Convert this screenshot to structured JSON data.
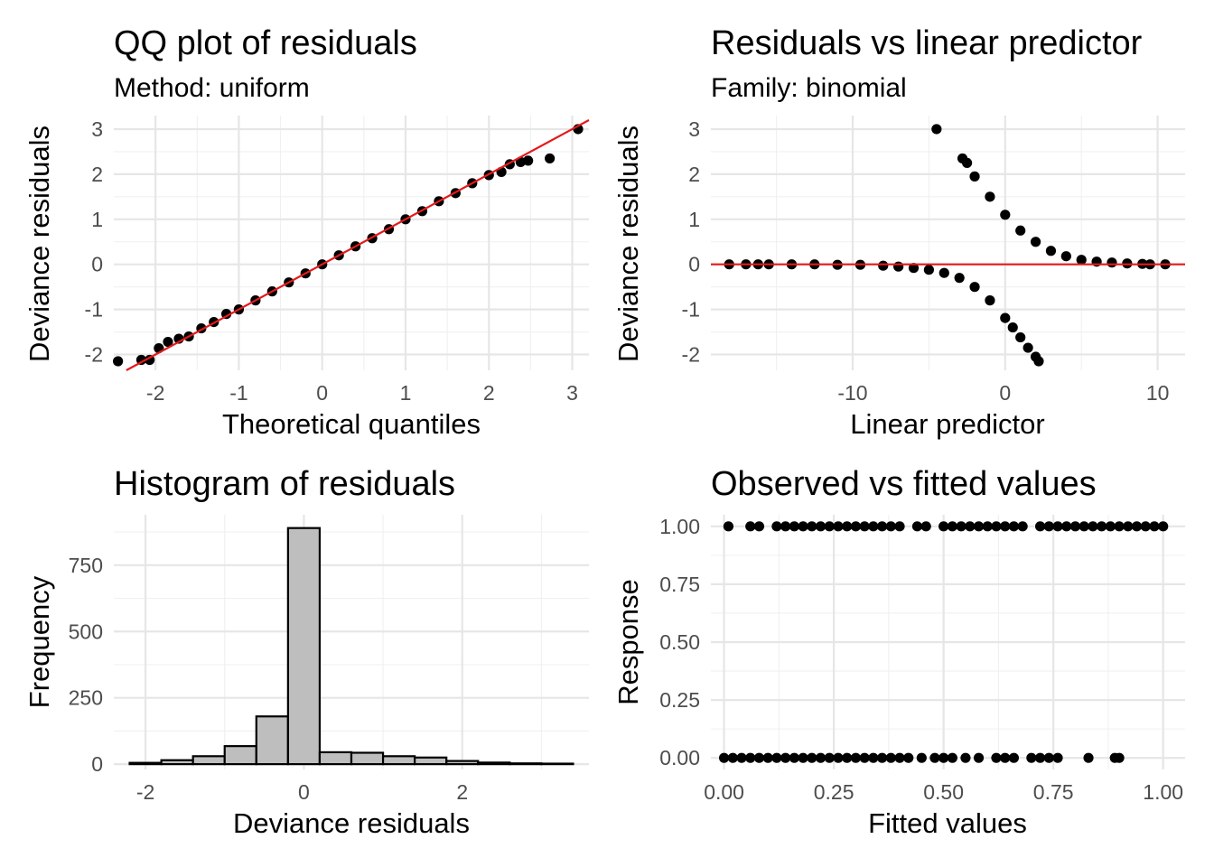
{
  "chart_data": [
    {
      "type": "scatter",
      "title": "QQ plot of residuals",
      "subtitle": "Method: uniform",
      "xlabel": "Theoretical quantiles",
      "ylabel": "Deviance residuals",
      "xlim": [
        -2.5,
        3.2
      ],
      "ylim": [
        -2.35,
        3.3
      ],
      "xticks": [
        -2,
        -1,
        0,
        1,
        2,
        3
      ],
      "yticks": [
        -2,
        -1,
        0,
        1,
        2,
        3
      ],
      "reference_line": {
        "slope": 1,
        "intercept": 0,
        "color": "#e41a1c"
      },
      "grid": true,
      "series": [
        {
          "x": [
            -2.45,
            -2.17,
            -2.07,
            -1.96,
            -1.85,
            -1.72,
            -1.6,
            -1.45,
            -1.3,
            -1.15,
            -1.0,
            -0.8,
            -0.6,
            -0.4,
            -0.2,
            0.0,
            0.2,
            0.4,
            0.6,
            0.8,
            1.0,
            1.2,
            1.4,
            1.6,
            1.8,
            2.0,
            2.15,
            2.25,
            2.38,
            2.47,
            2.73,
            3.07
          ],
          "y": [
            -2.15,
            -2.12,
            -2.12,
            -1.86,
            -1.72,
            -1.65,
            -1.6,
            -1.42,
            -1.28,
            -1.1,
            -1.0,
            -0.8,
            -0.6,
            -0.4,
            -0.2,
            0.0,
            0.2,
            0.4,
            0.58,
            0.78,
            1.0,
            1.18,
            1.4,
            1.58,
            1.8,
            1.98,
            2.05,
            2.22,
            2.27,
            2.3,
            2.35,
            3.0
          ]
        }
      ]
    },
    {
      "type": "scatter",
      "title": "Residuals vs linear predictor",
      "subtitle": "Family: binomial",
      "xlabel": "Linear predictor",
      "ylabel": "Deviance residuals",
      "xlim": [
        -19.3,
        11.8
      ],
      "ylim": [
        -2.35,
        3.3
      ],
      "xticks": [
        -10,
        0,
        10
      ],
      "yticks": [
        -2,
        -1,
        0,
        1,
        2,
        3
      ],
      "reference_line": {
        "slope": 0,
        "intercept": 0,
        "color": "#e41a1c"
      },
      "grid": true,
      "series": [
        {
          "x": [
            -18.1,
            -17.0,
            -16.2,
            -15.5,
            -14.0,
            -12.5,
            -11.0,
            -9.5,
            -8.0,
            -7.0,
            -6.0,
            -5.0,
            -4.0,
            -3.0,
            -2.0,
            -1.0,
            0.0,
            0.5,
            1.0,
            1.5,
            2.0,
            2.2,
            -4.5,
            -2.8,
            -2.5,
            -2.0,
            -1.0,
            0.0,
            1.0,
            2.0,
            3.0,
            4.0,
            5.0,
            6.0,
            7.0,
            8.0,
            9.0,
            9.5,
            10.5
          ],
          "y": [
            0.0,
            0.0,
            0.0,
            0.0,
            0.0,
            0.0,
            -0.01,
            -0.01,
            -0.03,
            -0.05,
            -0.08,
            -0.12,
            -0.19,
            -0.3,
            -0.5,
            -0.8,
            -1.19,
            -1.4,
            -1.62,
            -1.85,
            -2.05,
            -2.15,
            3.0,
            2.35,
            2.25,
            1.95,
            1.5,
            1.1,
            0.75,
            0.5,
            0.3,
            0.18,
            0.1,
            0.06,
            0.04,
            0.02,
            0.01,
            0.0,
            0.0
          ]
        }
      ]
    },
    {
      "type": "bar",
      "title": "Histogram of residuals",
      "xlabel": "Deviance residuals",
      "ylabel": "Frequency",
      "xlim": [
        -2.4,
        3.6
      ],
      "ylim": [
        -20,
        940
      ],
      "xticks": [
        -2,
        0,
        2
      ],
      "yticks": [
        0,
        250,
        500,
        750
      ],
      "grid": true,
      "bins": [
        {
          "x0": -2.2,
          "x1": -1.8,
          "value": 5
        },
        {
          "x0": -1.8,
          "x1": -1.4,
          "value": 15
        },
        {
          "x0": -1.4,
          "x1": -1.0,
          "value": 30
        },
        {
          "x0": -1.0,
          "x1": -0.6,
          "value": 68
        },
        {
          "x0": -0.6,
          "x1": -0.2,
          "value": 180
        },
        {
          "x0": -0.2,
          "x1": 0.2,
          "value": 890
        },
        {
          "x0": 0.2,
          "x1": 0.6,
          "value": 45
        },
        {
          "x0": 0.6,
          "x1": 1.0,
          "value": 43
        },
        {
          "x0": 1.0,
          "x1": 1.4,
          "value": 30
        },
        {
          "x0": 1.4,
          "x1": 1.8,
          "value": 25
        },
        {
          "x0": 1.8,
          "x1": 2.2,
          "value": 12
        },
        {
          "x0": 2.2,
          "x1": 2.6,
          "value": 6
        },
        {
          "x0": 2.6,
          "x1": 3.0,
          "value": 3
        },
        {
          "x0": 3.0,
          "x1": 3.4,
          "value": 2
        }
      ]
    },
    {
      "type": "scatter",
      "title": "Observed vs fitted values",
      "xlabel": "Fitted values",
      "ylabel": "Response",
      "xlim": [
        -0.03,
        1.05
      ],
      "ylim": [
        -0.05,
        1.05
      ],
      "xticks": [
        "0.00",
        "0.25",
        "0.50",
        "0.75",
        "1.00"
      ],
      "yticks": [
        "0.00",
        "0.25",
        "0.50",
        "0.75",
        "1.00"
      ],
      "grid": true,
      "series": [
        {
          "name": "",
          "x": [
            0.0,
            0.02,
            0.04,
            0.06,
            0.08,
            0.1,
            0.12,
            0.14,
            0.16,
            0.18,
            0.2,
            0.22,
            0.24,
            0.26,
            0.28,
            0.3,
            0.32,
            0.34,
            0.36,
            0.38,
            0.4,
            0.42,
            0.45,
            0.48,
            0.5,
            0.52,
            0.55,
            0.58,
            0.62,
            0.64,
            0.66,
            0.7,
            0.72,
            0.74,
            0.76,
            0.83,
            0.89,
            0.9
          ],
          "y": [
            0,
            0,
            0,
            0,
            0,
            0,
            0,
            0,
            0,
            0,
            0,
            0,
            0,
            0,
            0,
            0,
            0,
            0,
            0,
            0,
            0,
            0,
            0,
            0,
            0,
            0,
            0,
            0,
            0,
            0,
            0,
            0,
            0,
            0,
            0,
            0,
            0,
            0
          ]
        },
        {
          "name": "",
          "x": [
            0.01,
            0.06,
            0.08,
            0.12,
            0.14,
            0.16,
            0.18,
            0.2,
            0.22,
            0.24,
            0.26,
            0.28,
            0.3,
            0.32,
            0.34,
            0.36,
            0.38,
            0.4,
            0.44,
            0.46,
            0.5,
            0.52,
            0.54,
            0.56,
            0.58,
            0.6,
            0.62,
            0.64,
            0.66,
            0.68,
            0.72,
            0.74,
            0.76,
            0.78,
            0.8,
            0.82,
            0.84,
            0.86,
            0.88,
            0.9,
            0.92,
            0.94,
            0.96,
            0.98,
            1.0
          ],
          "y": [
            1,
            1,
            1,
            1,
            1,
            1,
            1,
            1,
            1,
            1,
            1,
            1,
            1,
            1,
            1,
            1,
            1,
            1,
            1,
            1,
            1,
            1,
            1,
            1,
            1,
            1,
            1,
            1,
            1,
            1,
            1,
            1,
            1,
            1,
            1,
            1,
            1,
            1,
            1,
            1,
            1,
            1,
            1,
            1,
            1
          ]
        }
      ]
    }
  ]
}
